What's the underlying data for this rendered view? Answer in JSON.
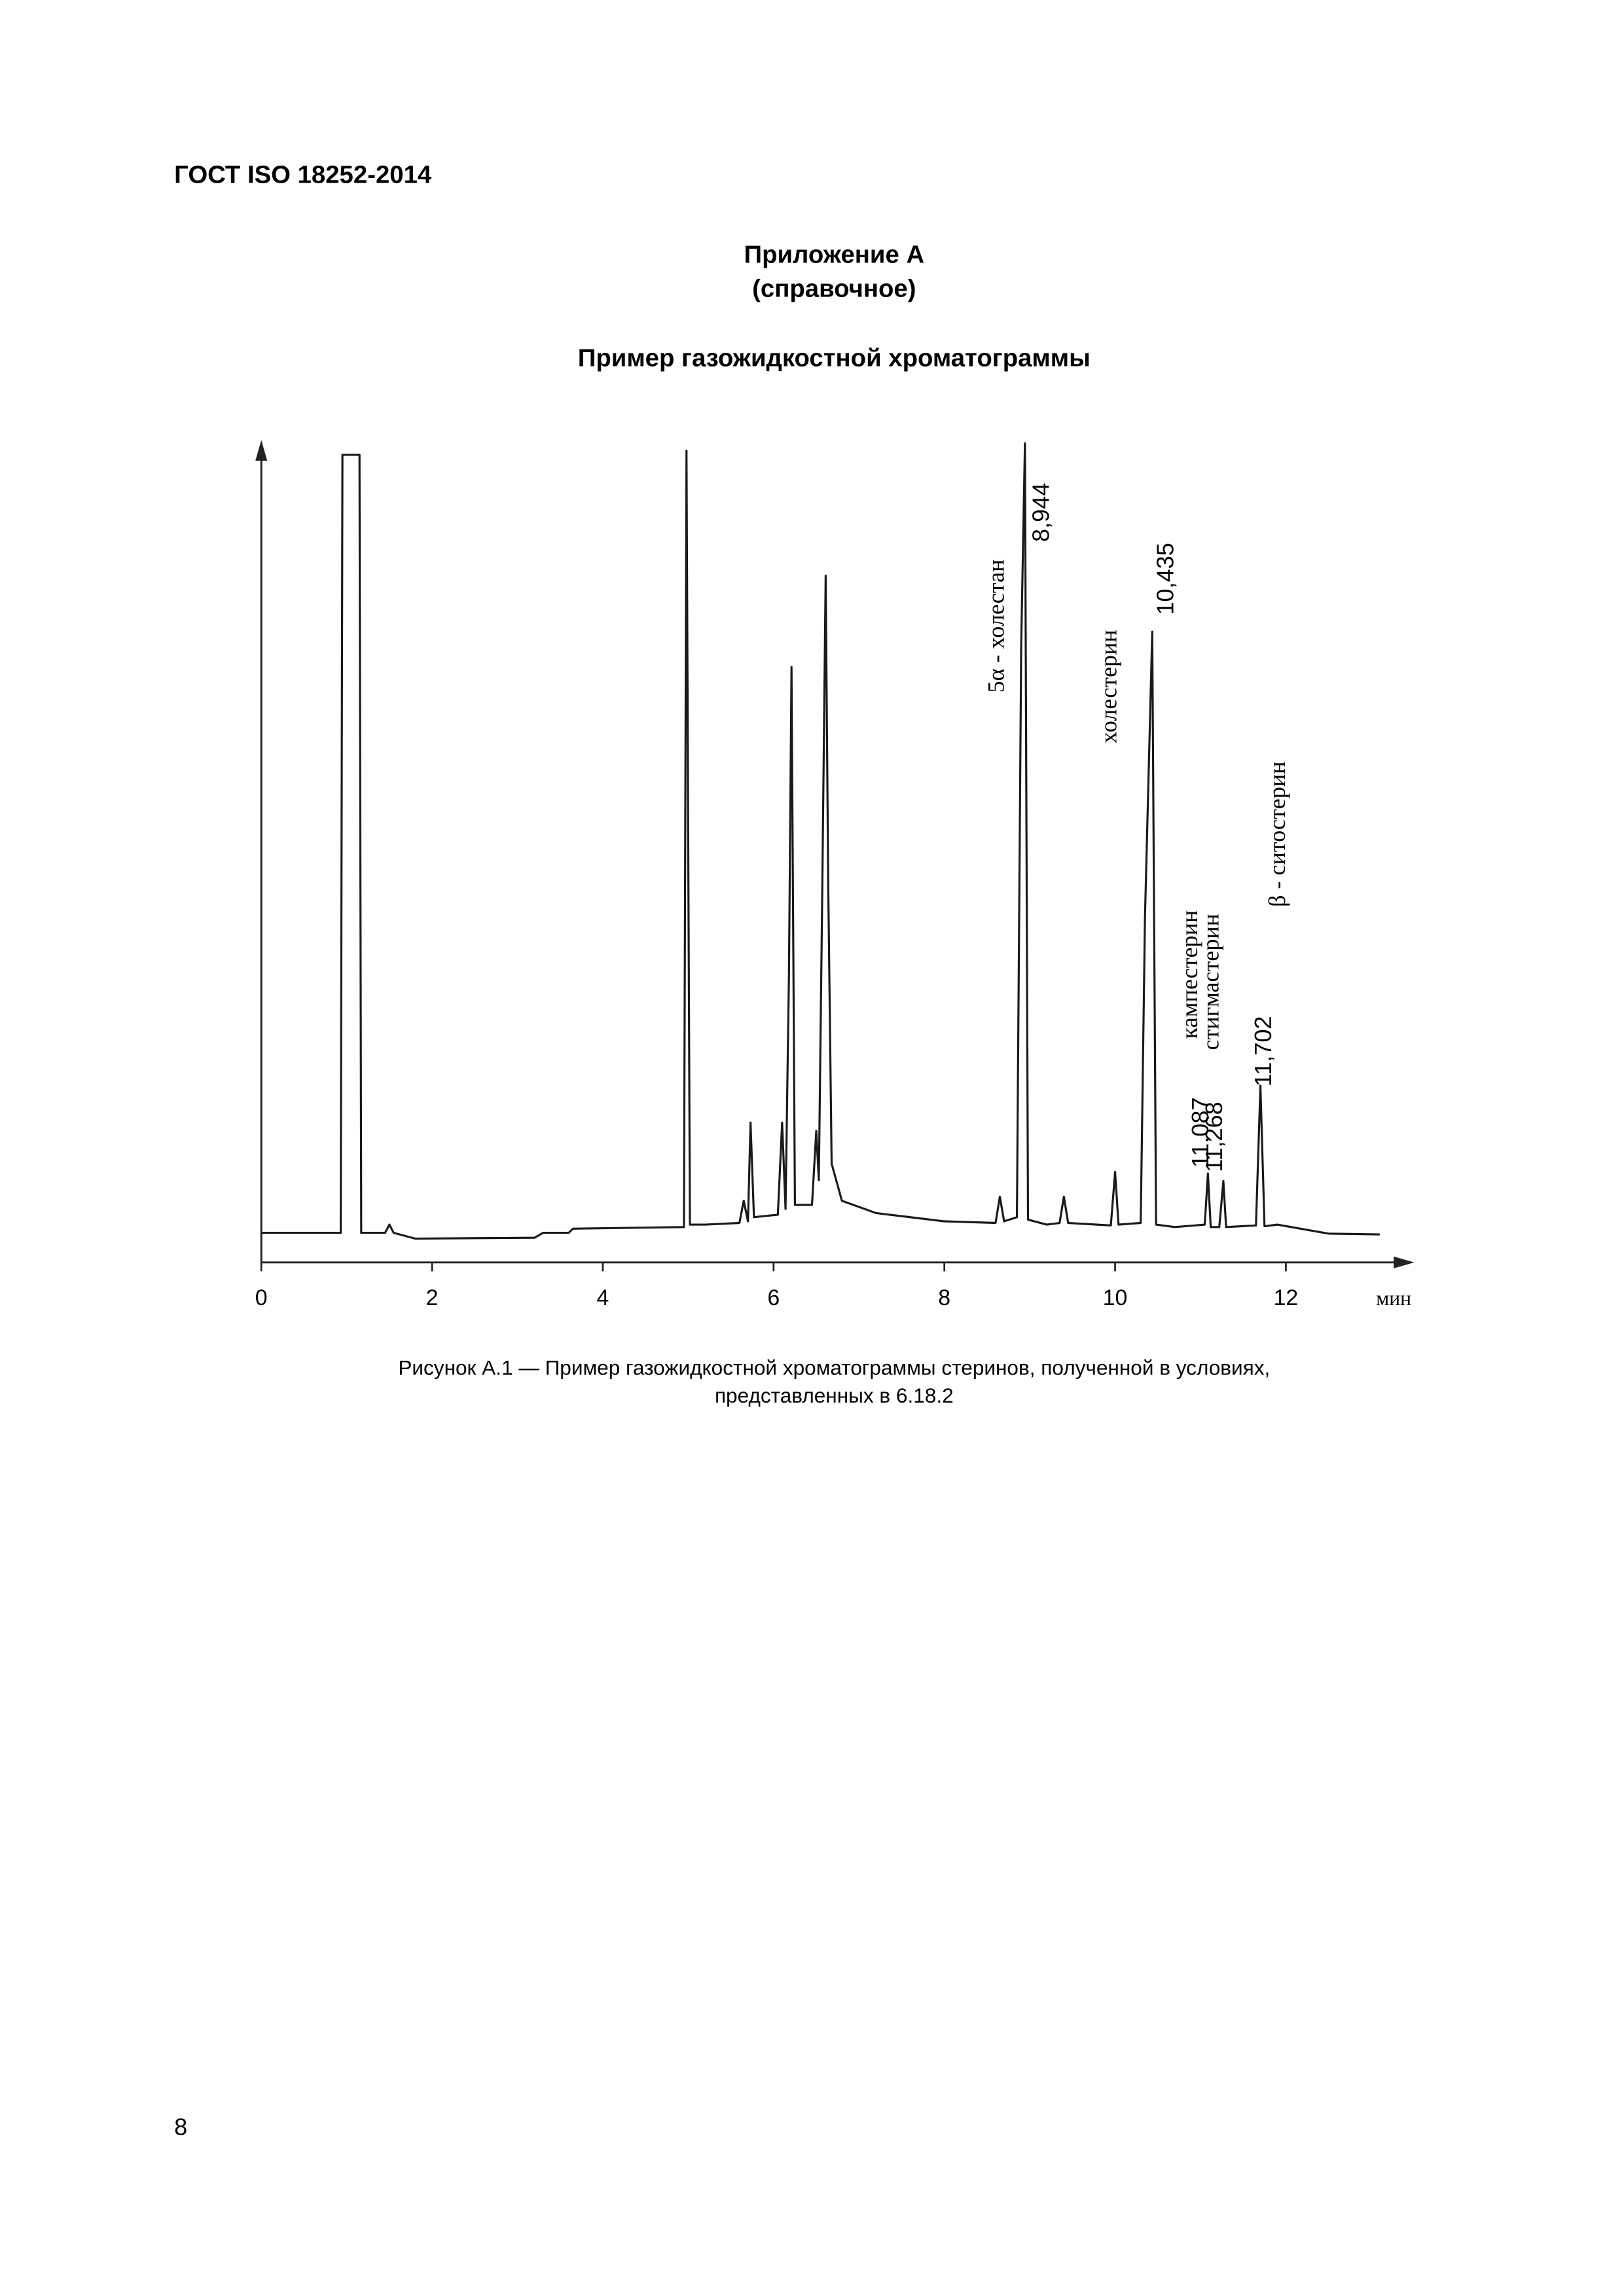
{
  "header": {
    "title": "ГОСТ ISO 18252-2014"
  },
  "appendix": {
    "title": "Приложение А",
    "status": "(справочное)",
    "heading": "Пример газожидкостной хроматограммы"
  },
  "chart_data": {
    "type": "line",
    "color": "#1a1a1a",
    "xlabel": "мин",
    "x": [
      0,
      0.93,
      0.95,
      1.15,
      1.17,
      1.45,
      1.5,
      1.55,
      1.8,
      3.2,
      3.3,
      3.6,
      3.65,
      4.95,
      4.98,
      5.02,
      5.2,
      5.6,
      5.65,
      5.7,
      5.73,
      5.77,
      6.05,
      6.1,
      6.14,
      6.18,
      6.21,
      6.25,
      6.45,
      6.5,
      6.53,
      6.57,
      6.61,
      6.64,
      6.68,
      6.8,
      7.2,
      8.0,
      8.6,
      8.65,
      8.7,
      8.85,
      8.9,
      8.944,
      8.98,
      9.2,
      9.35,
      9.4,
      9.45,
      9.95,
      10.0,
      10.04,
      10.3,
      10.35,
      10.435,
      10.48,
      10.7,
      11.05,
      11.087,
      11.12,
      11.22,
      11.268,
      11.3,
      11.65,
      11.702,
      11.75,
      11.9,
      12.5,
      13.1
    ],
    "values": [
      3.6,
      3.6,
      98.2,
      98.2,
      3.6,
      3.6,
      4.6,
      3.6,
      2.9,
      3.0,
      3.6,
      3.6,
      4.1,
      4.3,
      98.7,
      4.6,
      4.6,
      4.8,
      7.5,
      5.0,
      17,
      5.5,
      5.8,
      17,
      6.5,
      35,
      72.4,
      7,
      7,
      16,
      10,
      45,
      83.5,
      46,
      12,
      7.5,
      6.0,
      5.0,
      4.8,
      8,
      5,
      5.5,
      75,
      99.6,
      5.2,
      4.6,
      4.8,
      8,
      4.8,
      4.5,
      11,
      4.6,
      4.8,
      42,
      76.7,
      4.6,
      4.3,
      4.6,
      10.8,
      4.3,
      4.3,
      9.9,
      4.3,
      4.5,
      21.5,
      4.4,
      4.6,
      3.5,
      3.4
    ],
    "xlim": [
      0,
      13.4
    ],
    "ylim": [
      0,
      100
    ],
    "xticks": [
      0,
      2,
      4,
      6,
      8,
      10,
      12
    ],
    "peaks": [
      {
        "x": 8.944,
        "label": "8,944",
        "compound": "5α - холестан"
      },
      {
        "x": 10.435,
        "label": "10,435",
        "compound": "холестерин"
      },
      {
        "x": 11.087,
        "label": "11,087",
        "compound": "кампестерин"
      },
      {
        "x": 11.268,
        "label": "11,268",
        "compound": "стигмастерин"
      },
      {
        "x": 11.702,
        "label": "11,702",
        "compound": "β - ситостерин"
      }
    ]
  },
  "caption": {
    "line1": "Рисунок А.1 — Пример газожидкостной хроматограммы стеринов, полученной в условиях,",
    "line2": "представленных в 6.18.2"
  },
  "footer": {
    "page_number": "8"
  }
}
